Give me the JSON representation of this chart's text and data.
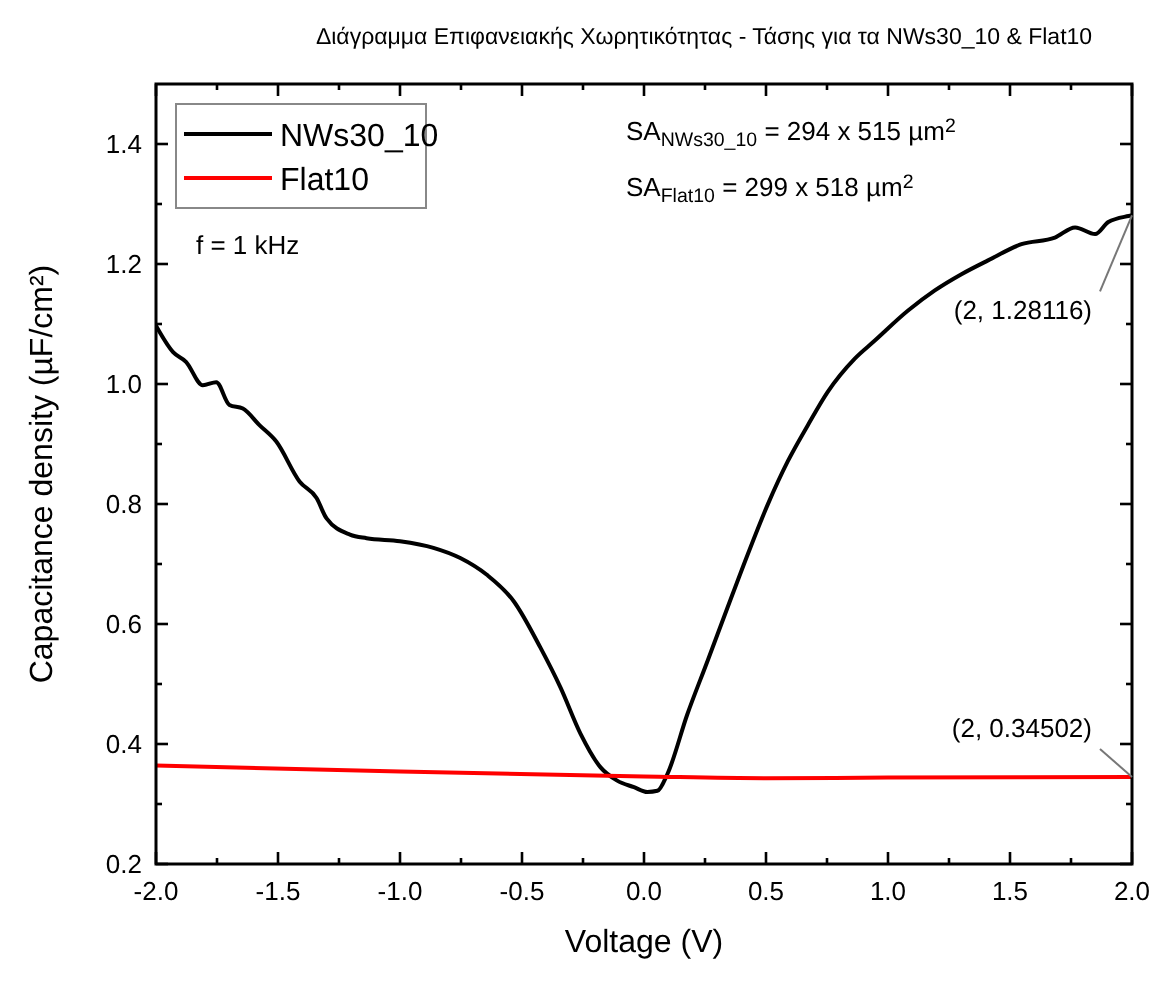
{
  "chart_data": {
    "type": "line",
    "title": "Διάγραμμα Επιφανειακής Χωρητικότητας - Τάσης για τα NWs30_10 & Flat10",
    "xlabel": "Voltage (V)",
    "ylabel": "Capacitance density (µF/cm²)",
    "xlim": [
      -2,
      2
    ],
    "ylim": [
      0.2,
      1.5
    ],
    "xticks": [
      {
        "value": -2,
        "label": "-2.0"
      },
      {
        "value": -1.75,
        "label": null
      },
      -1.5,
      {
        "value": -1.25,
        "label": null
      },
      {
        "value": -1,
        "label": "-1.0"
      },
      {
        "value": -0.75,
        "label": null
      },
      -0.5,
      {
        "value": -0.25,
        "label": null
      },
      {
        "value": 0,
        "label": "0.0"
      },
      {
        "value": 0.25,
        "label": null
      },
      0.5,
      {
        "value": 0.75,
        "label": null
      },
      {
        "value": 1,
        "label": "1.0"
      },
      {
        "value": 1.25,
        "label": null
      },
      1.5,
      {
        "value": 1.75,
        "label": null
      },
      {
        "value": 2,
        "label": "2.0"
      }
    ],
    "yticks": [
      0.2,
      {
        "value": 0.3,
        "label": null
      },
      0.4,
      {
        "value": 0.5,
        "label": null
      },
      0.6,
      {
        "value": 0.7,
        "label": null
      },
      0.8,
      {
        "value": 0.9,
        "label": null
      },
      {
        "value": 1,
        "label": "1.0"
      },
      {
        "value": 1.1,
        "label": null
      },
      1.2,
      {
        "value": 1.3,
        "label": null
      },
      1.4
    ],
    "grid": false,
    "legend": "top left",
    "line_style": "solid",
    "series": [
      {
        "name": "NWs30_10",
        "color": "#000000",
        "x": [
          -2.0,
          -1.93,
          -1.877,
          -1.808,
          -1.753,
          -1.699,
          -1.644,
          -1.575,
          -1.507,
          -1.411,
          -1.342,
          -1.301,
          -1.205,
          -1.137,
          -1.0,
          -0.863,
          -0.753,
          -0.644,
          -0.534,
          -0.425,
          -0.342,
          -0.26,
          -0.178,
          -0.11,
          -0.041,
          0.014,
          0.055,
          0.096,
          0.178,
          0.26,
          0.342,
          0.425,
          0.507,
          0.589,
          0.671,
          0.753,
          0.863,
          0.945,
          1.081,
          1.192,
          1.301,
          1.41,
          1.547,
          1.684,
          1.767,
          1.849,
          1.903,
          1.986,
          2.0
        ],
        "values": [
          1.097,
          1.053,
          1.037,
          0.998,
          1.003,
          0.965,
          0.959,
          0.931,
          0.904,
          0.837,
          0.81,
          0.776,
          0.749,
          0.743,
          0.738,
          0.727,
          0.71,
          0.682,
          0.638,
          0.561,
          0.494,
          0.417,
          0.361,
          0.339,
          0.328,
          0.32,
          0.322,
          0.35,
          0.45,
          0.538,
          0.627,
          0.716,
          0.799,
          0.871,
          0.931,
          0.987,
          1.042,
          1.072,
          1.122,
          1.156,
          1.183,
          1.206,
          1.233,
          1.244,
          1.261,
          1.25,
          1.27,
          1.28,
          1.28116
        ]
      },
      {
        "name": "Flat10",
        "color": "#ff0000",
        "x": [
          -2,
          -1,
          0,
          0.5,
          1,
          2
        ],
        "values": [
          0.364,
          0.354,
          0.346,
          0.343,
          0.344,
          0.34502
        ]
      }
    ],
    "annotations": [
      {
        "text": "(2, 1.28116)",
        "x": 2,
        "y": 1.28116
      },
      {
        "text": "(2, 0.34502)",
        "x": 2,
        "y": 0.34502
      },
      "f = 1 kHz",
      "SA$_{NWs30_10}$ = 294 x 515 µm$^{2}$",
      "SA$_{Flat10}$ = 299 x 518 µm$^{2}$"
    ]
  }
}
